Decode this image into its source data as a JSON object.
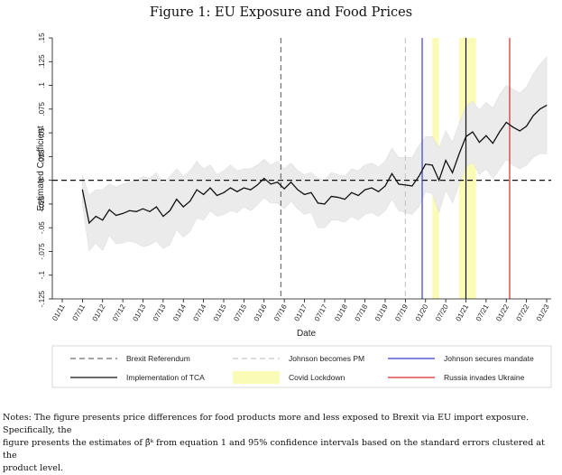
{
  "figure_title": "Figure 1: EU Exposure and Food Prices",
  "notes_lines": [
    "Notes: The figure presents price differences for food products more and less exposed to Brexit via EU import exposure. Specifically, the",
    "figure presents the estimates of β̂ᵏ from equation 1 and 95% confidence intervals based on the standard errors clustered at the",
    "product level."
  ],
  "chart_data": {
    "type": "line",
    "title": "",
    "xlabel": "Date",
    "ylabel": "Estimated Coefficient",
    "ylim": [
      -0.125,
      0.15
    ],
    "yticks": [
      -0.125,
      -0.1,
      -0.075,
      -0.05,
      -0.025,
      0,
      0.025,
      0.05,
      0.075,
      0.1,
      0.125,
      0.15
    ],
    "ytick_labels": [
      "-.125",
      "-.1",
      "-.075",
      "-.05",
      "-.025",
      "0",
      ".025",
      ".05",
      ".075",
      ".1",
      ".125",
      ".15"
    ],
    "x_start": "2011-07",
    "x_end": "2023-01",
    "xticks": [
      "2011-01",
      "2011-07",
      "2012-01",
      "2012-07",
      "2013-01",
      "2013-07",
      "2014-01",
      "2014-07",
      "2015-01",
      "2015-07",
      "2016-01",
      "2016-07",
      "2017-01",
      "2017-07",
      "2018-01",
      "2018-07",
      "2019-01",
      "2019-07",
      "2020-01",
      "2020-07",
      "2021-01",
      "2021-07",
      "2022-01",
      "2022-07",
      "2023-01"
    ],
    "xtick_labels": [
      "01/11",
      "07/11",
      "01/12",
      "07/12",
      "01/13",
      "07/13",
      "01/14",
      "07/14",
      "01/15",
      "07/15",
      "01/16",
      "07/16",
      "01/17",
      "07/17",
      "01/18",
      "07/18",
      "01/19",
      "07/19",
      "01/20",
      "07/20",
      "01/21",
      "07/21",
      "01/22",
      "07/22",
      "01/23"
    ],
    "grid": false,
    "legend_position": "bottom",
    "series": [
      {
        "color": "#111111",
        "points": [
          [
            "2011-07",
            -0.01
          ],
          [
            "2011-09",
            -0.045
          ],
          [
            "2011-11",
            -0.038
          ],
          [
            "2012-01",
            -0.042
          ],
          [
            "2012-03",
            -0.031
          ],
          [
            "2012-05",
            -0.037
          ],
          [
            "2012-07",
            -0.035
          ],
          [
            "2012-09",
            -0.032
          ],
          [
            "2012-11",
            -0.033
          ],
          [
            "2013-01",
            -0.03
          ],
          [
            "2013-03",
            -0.033
          ],
          [
            "2013-05",
            -0.028
          ],
          [
            "2013-07",
            -0.038
          ],
          [
            "2013-09",
            -0.032
          ],
          [
            "2013-11",
            -0.02
          ],
          [
            "2014-01",
            -0.028
          ],
          [
            "2014-03",
            -0.022
          ],
          [
            "2014-05",
            -0.01
          ],
          [
            "2014-07",
            -0.015
          ],
          [
            "2014-09",
            -0.008
          ],
          [
            "2014-11",
            -0.016
          ],
          [
            "2015-01",
            -0.013
          ],
          [
            "2015-03",
            -0.008
          ],
          [
            "2015-05",
            -0.012
          ],
          [
            "2015-07",
            -0.008
          ],
          [
            "2015-09",
            -0.01
          ],
          [
            "2015-11",
            -0.005
          ],
          [
            "2016-01",
            0.002
          ],
          [
            "2016-03",
            -0.004
          ],
          [
            "2016-05",
            -0.002
          ],
          [
            "2016-07",
            -0.009
          ],
          [
            "2016-09",
            -0.002
          ],
          [
            "2016-11",
            -0.01
          ],
          [
            "2017-01",
            -0.015
          ],
          [
            "2017-03",
            -0.013
          ],
          [
            "2017-05",
            -0.024
          ],
          [
            "2017-07",
            -0.025
          ],
          [
            "2017-09",
            -0.017
          ],
          [
            "2017-11",
            -0.018
          ],
          [
            "2018-01",
            -0.02
          ],
          [
            "2018-03",
            -0.013
          ],
          [
            "2018-05",
            -0.016
          ],
          [
            "2018-07",
            -0.01
          ],
          [
            "2018-09",
            -0.008
          ],
          [
            "2018-11",
            -0.012
          ],
          [
            "2019-01",
            -0.006
          ],
          [
            "2019-03",
            0.007
          ],
          [
            "2019-05",
            -0.004
          ],
          [
            "2019-07",
            -0.005
          ],
          [
            "2019-09",
            -0.006
          ],
          [
            "2019-11",
            0.004
          ],
          [
            "2020-01",
            0.017
          ],
          [
            "2020-03",
            0.016
          ],
          [
            "2020-05",
            0.0
          ],
          [
            "2020-07",
            0.021
          ],
          [
            "2020-09",
            0.008
          ],
          [
            "2020-11",
            0.028
          ],
          [
            "2021-01",
            0.046
          ],
          [
            "2021-03",
            0.051
          ],
          [
            "2021-05",
            0.04
          ],
          [
            "2021-07",
            0.047
          ],
          [
            "2021-09",
            0.039
          ],
          [
            "2021-11",
            0.051
          ],
          [
            "2022-01",
            0.061
          ],
          [
            "2022-03",
            0.056
          ],
          [
            "2022-05",
            0.052
          ],
          [
            "2022-07",
            0.057
          ],
          [
            "2022-09",
            0.068
          ],
          [
            "2022-11",
            0.075
          ],
          [
            "2023-01",
            0.079
          ]
        ],
        "ci_upper": [
          0.005,
          -0.016,
          -0.01,
          -0.01,
          -0.004,
          -0.007,
          -0.004,
          -0.002,
          0.0,
          0.004,
          0.002,
          0.008,
          -0.004,
          0.004,
          0.012,
          0.004,
          0.01,
          0.02,
          0.012,
          0.016,
          0.006,
          0.01,
          0.016,
          0.01,
          0.012,
          0.012,
          0.016,
          0.022,
          0.016,
          0.02,
          0.012,
          0.018,
          0.01,
          0.006,
          0.008,
          0.002,
          0.0,
          0.008,
          0.006,
          0.004,
          0.012,
          0.01,
          0.016,
          0.018,
          0.014,
          0.02,
          0.034,
          0.024,
          0.024,
          0.024,
          0.036,
          0.046,
          0.046,
          0.034,
          0.052,
          0.04,
          0.06,
          0.078,
          0.083,
          0.074,
          0.082,
          0.076,
          0.09,
          0.1,
          0.096,
          0.092,
          0.098,
          0.112,
          0.122,
          0.13
        ],
        "ci_lower": [
          -0.025,
          -0.074,
          -0.066,
          -0.074,
          -0.058,
          -0.067,
          -0.066,
          -0.064,
          -0.066,
          -0.07,
          -0.068,
          -0.064,
          -0.072,
          -0.068,
          -0.052,
          -0.06,
          -0.054,
          -0.04,
          -0.042,
          -0.032,
          -0.038,
          -0.036,
          -0.032,
          -0.034,
          -0.028,
          -0.032,
          -0.026,
          -0.018,
          -0.024,
          -0.024,
          -0.03,
          -0.022,
          -0.03,
          -0.036,
          -0.034,
          -0.05,
          -0.05,
          -0.042,
          -0.042,
          -0.044,
          -0.038,
          -0.042,
          -0.036,
          -0.034,
          -0.038,
          -0.032,
          -0.02,
          -0.032,
          -0.034,
          -0.036,
          -0.028,
          -0.012,
          -0.014,
          -0.034,
          -0.01,
          -0.024,
          -0.004,
          0.014,
          0.019,
          0.006,
          0.012,
          0.002,
          0.012,
          0.022,
          0.016,
          0.012,
          0.016,
          0.024,
          0.028,
          0.028
        ]
      }
    ],
    "vertical_lines": [
      {
        "date": "2016-06",
        "label": "Brexit Referendum",
        "style": "dashed",
        "color": "#6f6f6f"
      },
      {
        "date": "2019-07",
        "label": "Johnson becomes PM",
        "style": "dashed",
        "color": "#c8c8c8"
      },
      {
        "date": "2019-12",
        "label": "Johnson secures mandate",
        "style": "solid",
        "color": "#3a3ad0"
      },
      {
        "date": "2021-01",
        "label": "Implementation of TCA",
        "style": "solid",
        "color": "#111111"
      },
      {
        "date": "2022-02",
        "label": "Russia invades Ukraine",
        "style": "solid",
        "color": "#d42a2a"
      }
    ],
    "shaded_regions": [
      {
        "from": "2020-03",
        "to": "2020-05",
        "label": "Covid Lockdown",
        "color": "#fbfbb8"
      },
      {
        "from": "2020-11",
        "to": "2021-04",
        "label": "Covid Lockdown",
        "color": "#fbfbb8"
      }
    ],
    "ci_color": "#ebebeb",
    "legend": [
      [
        "Brexit Referendum",
        "Johnson becomes PM",
        "Johnson secures mandate"
      ],
      [
        "Implementation of TCA",
        "Covid Lockdown",
        "Russia invades Ukraine"
      ]
    ]
  }
}
